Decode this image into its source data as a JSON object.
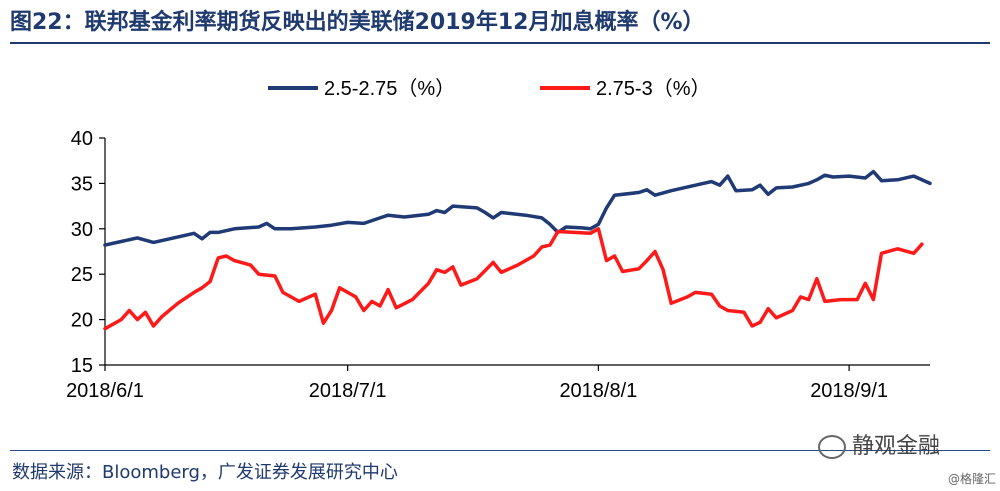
{
  "header": {
    "title": "图22：联邦基金利率期货反映出的美联储2019年12月加息概率（%）"
  },
  "footer": {
    "source": "数据来源：Bloomberg，广发证券发展研究中心",
    "watermark": "静观金融",
    "watermark2": "@格隆汇"
  },
  "chart_data": {
    "type": "line",
    "x_ticks": [
      "2018/6/1",
      "2018/7/1",
      "2018/8/1",
      "2018/9/1"
    ],
    "x_range": [
      "2018/6/1",
      "2018/9/11"
    ],
    "ylim": [
      15,
      40
    ],
    "y_ticks": [
      15,
      20,
      25,
      30,
      35,
      40
    ],
    "legend_position": "top",
    "grid": false,
    "series": [
      {
        "name": "2.5-2.75（%）",
        "color": "#1f3a75",
        "points": [
          [
            "2018/6/1",
            28.2
          ],
          [
            "2018/6/3",
            28.6
          ],
          [
            "2018/6/5",
            29.0
          ],
          [
            "2018/6/7",
            28.5
          ],
          [
            "2018/6/9",
            28.9
          ],
          [
            "2018/6/11",
            29.3
          ],
          [
            "2018/6/12",
            29.5
          ],
          [
            "2018/6/13",
            28.9
          ],
          [
            "2018/6/14",
            29.6
          ],
          [
            "2018/6/15",
            29.6
          ],
          [
            "2018/6/17",
            30.0
          ],
          [
            "2018/6/20",
            30.2
          ],
          [
            "2018/6/21",
            30.6
          ],
          [
            "2018/6/22",
            30.0
          ],
          [
            "2018/6/24",
            30.0
          ],
          [
            "2018/6/27",
            30.2
          ],
          [
            "2018/6/29",
            30.4
          ],
          [
            "2018/7/1",
            30.7
          ],
          [
            "2018/7/3",
            30.6
          ],
          [
            "2018/7/5",
            31.2
          ],
          [
            "2018/7/6",
            31.5
          ],
          [
            "2018/7/8",
            31.3
          ],
          [
            "2018/7/11",
            31.6
          ],
          [
            "2018/7/12",
            32.0
          ],
          [
            "2018/7/13",
            31.8
          ],
          [
            "2018/7/14",
            32.5
          ],
          [
            "2018/7/17",
            32.3
          ],
          [
            "2018/7/18",
            31.8
          ],
          [
            "2018/7/19",
            31.2
          ],
          [
            "2018/7/20",
            31.8
          ],
          [
            "2018/7/23",
            31.5
          ],
          [
            "2018/7/25",
            31.2
          ],
          [
            "2018/7/26",
            30.5
          ],
          [
            "2018/7/27",
            29.6
          ],
          [
            "2018/7/28",
            30.2
          ],
          [
            "2018/7/30",
            30.1
          ],
          [
            "2018/7/31",
            30.0
          ],
          [
            "2018/8/1",
            30.5
          ],
          [
            "2018/8/2",
            32.3
          ],
          [
            "2018/8/3",
            33.7
          ],
          [
            "2018/8/6",
            34.0
          ],
          [
            "2018/8/7",
            34.3
          ],
          [
            "2018/8/8",
            33.7
          ],
          [
            "2018/8/10",
            34.2
          ],
          [
            "2018/8/13",
            34.8
          ],
          [
            "2018/8/15",
            35.2
          ],
          [
            "2018/8/16",
            34.8
          ],
          [
            "2018/8/17",
            35.8
          ],
          [
            "2018/8/18",
            34.2
          ],
          [
            "2018/8/20",
            34.3
          ],
          [
            "2018/8/21",
            34.8
          ],
          [
            "2018/8/22",
            33.8
          ],
          [
            "2018/8/23",
            34.5
          ],
          [
            "2018/8/25",
            34.6
          ],
          [
            "2018/8/27",
            35.0
          ],
          [
            "2018/8/28",
            35.4
          ],
          [
            "2018/8/29",
            35.9
          ],
          [
            "2018/8/30",
            35.7
          ],
          [
            "2018/9/1",
            35.8
          ],
          [
            "2018/9/3",
            35.6
          ],
          [
            "2018/9/4",
            36.3
          ],
          [
            "2018/9/5",
            35.3
          ],
          [
            "2018/9/7",
            35.4
          ],
          [
            "2018/9/9",
            35.8
          ],
          [
            "2018/9/11",
            35.0
          ]
        ]
      },
      {
        "name": "2.75-3（%）",
        "color": "#ff1a1a",
        "points": [
          [
            "2018/6/1",
            19.0
          ],
          [
            "2018/6/3",
            20.0
          ],
          [
            "2018/6/4",
            21.0
          ],
          [
            "2018/6/5",
            20.0
          ],
          [
            "2018/6/6",
            20.8
          ],
          [
            "2018/6/7",
            19.3
          ],
          [
            "2018/6/8",
            20.3
          ],
          [
            "2018/6/10",
            21.8
          ],
          [
            "2018/6/12",
            23.0
          ],
          [
            "2018/6/13",
            23.5
          ],
          [
            "2018/6/14",
            24.2
          ],
          [
            "2018/6/15",
            26.8
          ],
          [
            "2018/6/16",
            27.0
          ],
          [
            "2018/6/17",
            26.5
          ],
          [
            "2018/6/19",
            26.0
          ],
          [
            "2018/6/20",
            25.0
          ],
          [
            "2018/6/22",
            24.8
          ],
          [
            "2018/6/23",
            23.0
          ],
          [
            "2018/6/25",
            22.0
          ],
          [
            "2018/6/27",
            22.8
          ],
          [
            "2018/6/28",
            19.6
          ],
          [
            "2018/6/29",
            21.0
          ],
          [
            "2018/6/30",
            23.5
          ],
          [
            "2018/7/2",
            22.5
          ],
          [
            "2018/7/3",
            21.0
          ],
          [
            "2018/7/4",
            22.0
          ],
          [
            "2018/7/5",
            21.5
          ],
          [
            "2018/7/6",
            23.3
          ],
          [
            "2018/7/7",
            21.3
          ],
          [
            "2018/7/9",
            22.2
          ],
          [
            "2018/7/11",
            24.0
          ],
          [
            "2018/7/12",
            25.5
          ],
          [
            "2018/7/13",
            25.2
          ],
          [
            "2018/7/14",
            25.8
          ],
          [
            "2018/7/15",
            23.8
          ],
          [
            "2018/7/17",
            24.5
          ],
          [
            "2018/7/19",
            26.3
          ],
          [
            "2018/7/20",
            25.2
          ],
          [
            "2018/7/22",
            26.0
          ],
          [
            "2018/7/24",
            27.0
          ],
          [
            "2018/7/25",
            28.0
          ],
          [
            "2018/7/26",
            28.2
          ],
          [
            "2018/7/27",
            29.7
          ],
          [
            "2018/7/29",
            29.6
          ],
          [
            "2018/7/31",
            29.5
          ],
          [
            "2018/8/1",
            30.0
          ],
          [
            "2018/8/2",
            26.5
          ],
          [
            "2018/8/3",
            27.0
          ],
          [
            "2018/8/4",
            25.3
          ],
          [
            "2018/8/6",
            25.6
          ],
          [
            "2018/8/7",
            26.5
          ],
          [
            "2018/8/8",
            27.5
          ],
          [
            "2018/8/9",
            25.5
          ],
          [
            "2018/8/10",
            21.8
          ],
          [
            "2018/8/12",
            22.5
          ],
          [
            "2018/8/13",
            23.0
          ],
          [
            "2018/8/15",
            22.8
          ],
          [
            "2018/8/16",
            21.5
          ],
          [
            "2018/8/17",
            21.0
          ],
          [
            "2018/8/19",
            20.8
          ],
          [
            "2018/8/20",
            19.3
          ],
          [
            "2018/8/21",
            19.7
          ],
          [
            "2018/8/22",
            21.2
          ],
          [
            "2018/8/23",
            20.2
          ],
          [
            "2018/8/25",
            21.0
          ],
          [
            "2018/8/26",
            22.5
          ],
          [
            "2018/8/27",
            22.2
          ],
          [
            "2018/8/28",
            24.5
          ],
          [
            "2018/8/29",
            22.0
          ],
          [
            "2018/8/31",
            22.2
          ],
          [
            "2018/9/2",
            22.2
          ],
          [
            "2018/9/3",
            24.0
          ],
          [
            "2018/9/4",
            22.2
          ],
          [
            "2018/9/5",
            27.3
          ],
          [
            "2018/9/7",
            27.8
          ],
          [
            "2018/9/9",
            27.3
          ],
          [
            "2018/9/10",
            28.3
          ]
        ]
      }
    ]
  }
}
